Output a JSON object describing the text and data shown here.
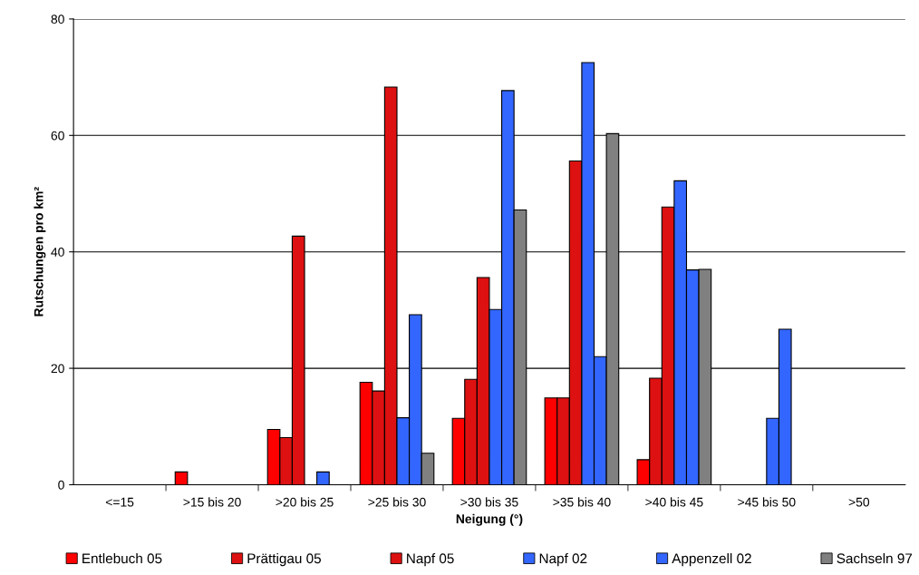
{
  "chart_data": {
    "type": "bar",
    "xlabel": "Neigung (°)",
    "ylabel": "Rutschungen pro km²",
    "categories": [
      "<=15",
      ">15 bis 20",
      ">20 bis 25",
      ">25 bis 30",
      ">30 bis 35",
      ">35 bis 40",
      ">40 bis 45",
      ">45 bis 50",
      ">50"
    ],
    "series": [
      {
        "name": "Entlebuch 05",
        "color": "#ff0000",
        "values": [
          null,
          2.2,
          9.5,
          17.6,
          11.4,
          14.9,
          4.3,
          null,
          null
        ]
      },
      {
        "name": "Prättigau 05",
        "color": "#dd1111",
        "values": [
          null,
          null,
          8.1,
          16.1,
          18.1,
          14.9,
          18.3,
          null,
          null
        ]
      },
      {
        "name": "Napf 05",
        "color": "#dd1111",
        "values": [
          null,
          null,
          42.7,
          68.3,
          35.6,
          55.6,
          47.7,
          null,
          null
        ]
      },
      {
        "name": "Napf 02",
        "color": "#3366ff",
        "values": [
          null,
          null,
          null,
          11.5,
          30.1,
          72.5,
          52.2,
          11.4,
          null
        ]
      },
      {
        "name": "Appenzell 02",
        "color": "#3366ff",
        "values": [
          null,
          null,
          2.2,
          29.2,
          67.7,
          22.0,
          36.9,
          26.7,
          null
        ]
      },
      {
        "name": "Sachseln 97",
        "color": "#808080",
        "values": [
          null,
          null,
          null,
          5.4,
          47.2,
          60.3,
          37.0,
          null,
          null
        ]
      }
    ],
    "ylim": [
      0,
      80
    ],
    "yticks": [
      0,
      20,
      40,
      60,
      80
    ],
    "grid": "y",
    "legend": "bottom"
  }
}
